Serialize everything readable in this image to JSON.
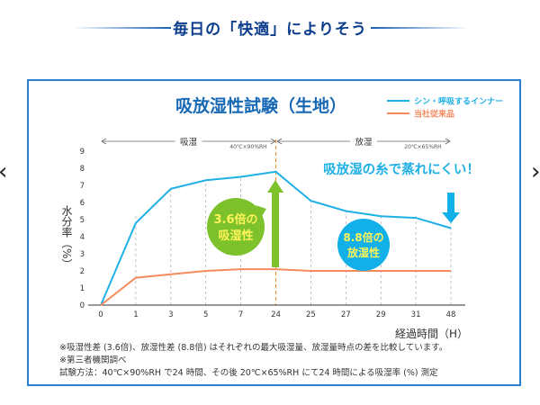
{
  "header": {
    "title": "毎日の「快適」によりそう"
  },
  "carousel": {
    "prev_icon": "chevron-left-icon",
    "next_icon": "chevron-right-icon"
  },
  "chart_data": {
    "type": "line",
    "title": "吸放湿性試験（生地）",
    "categories": [
      "0",
      "1",
      "3",
      "5",
      "7",
      "24",
      "25",
      "27",
      "29",
      "31",
      "48"
    ],
    "xlabel": "経過時間（H）",
    "ylabel": "水分率（%）",
    "ylim": [
      0,
      9
    ],
    "yticks": [
      "0",
      "1",
      "2",
      "3",
      "4",
      "5",
      "6",
      "7",
      "8",
      "9"
    ],
    "legend_position": "top-right",
    "series": [
      {
        "name": "シン・呼吸するインナー",
        "color": "#1fb0e6",
        "values": [
          0,
          4.8,
          6.8,
          7.3,
          7.5,
          7.8,
          6.1,
          5.5,
          5.2,
          5.1,
          4.5
        ]
      },
      {
        "name": "当社従来品",
        "color": "#f58a5f",
        "values": [
          0,
          1.6,
          1.8,
          2.0,
          2.1,
          2.1,
          2.0,
          2.0,
          2.0,
          2.0,
          2.0
        ]
      }
    ],
    "phases": [
      {
        "label": "吸湿",
        "condition": "40℃×90%RH"
      },
      {
        "label": "放湿",
        "condition": "20℃×65%RH"
      }
    ],
    "annotations": {
      "headline": "吸放湿の糸で蒸れにくい！",
      "absorb_bubble": [
        "3.6倍の",
        "吸湿性"
      ],
      "release_bubble": [
        "8.8倍の",
        "放湿性"
      ],
      "absorb_color": "#7dc22a",
      "release_color": "#12b0e8"
    }
  },
  "notes": [
    "※吸湿性差 (3.6倍)、放湿性差 (8.8倍) はそれぞれの最大吸湿量、放湿量時点の差を比較しています。",
    "※第三者機関調べ",
    "試験方法：40℃×90%RH で24 時間、その後 20℃×65%RH にて24 時間による吸湿率 (%) 測定"
  ]
}
